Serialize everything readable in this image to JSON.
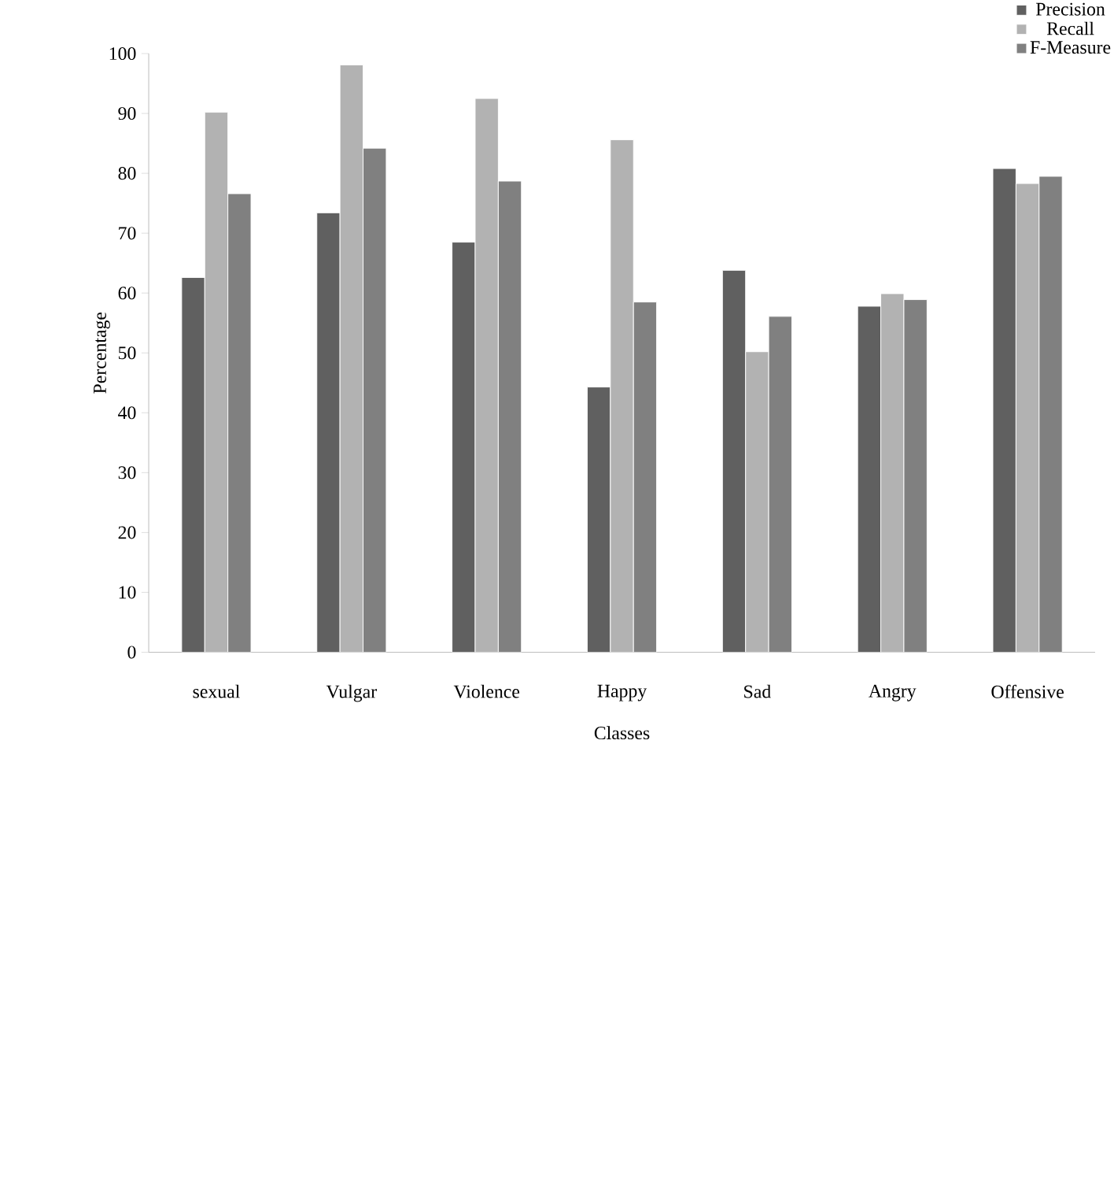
{
  "chart_data": {
    "type": "bar",
    "xlabel": "Classes",
    "ylabel": "Percentage",
    "categories": [
      "sexual",
      "Vulgar",
      "Violence",
      "Happy",
      "Sad",
      "Angry",
      "Offensive"
    ],
    "series": [
      {
        "name": "Precision",
        "color": "#606060",
        "values": [
          62.6,
          73.4,
          68.5,
          44.3,
          63.8,
          57.8,
          80.8
        ]
      },
      {
        "name": "Recall",
        "color": "#b2b2b2",
        "values": [
          90.2,
          98.1,
          92.5,
          85.6,
          50.2,
          59.9,
          78.3
        ]
      },
      {
        "name": "F-Measure",
        "color": "#808080",
        "values": [
          76.6,
          84.2,
          78.7,
          58.5,
          56.1,
          58.9,
          79.5
        ]
      }
    ],
    "ylim": [
      0,
      100
    ],
    "yticks": [
      0,
      10,
      20,
      30,
      40,
      50,
      60,
      70,
      80,
      90,
      100
    ],
    "grid": false,
    "legend": "top right"
  }
}
